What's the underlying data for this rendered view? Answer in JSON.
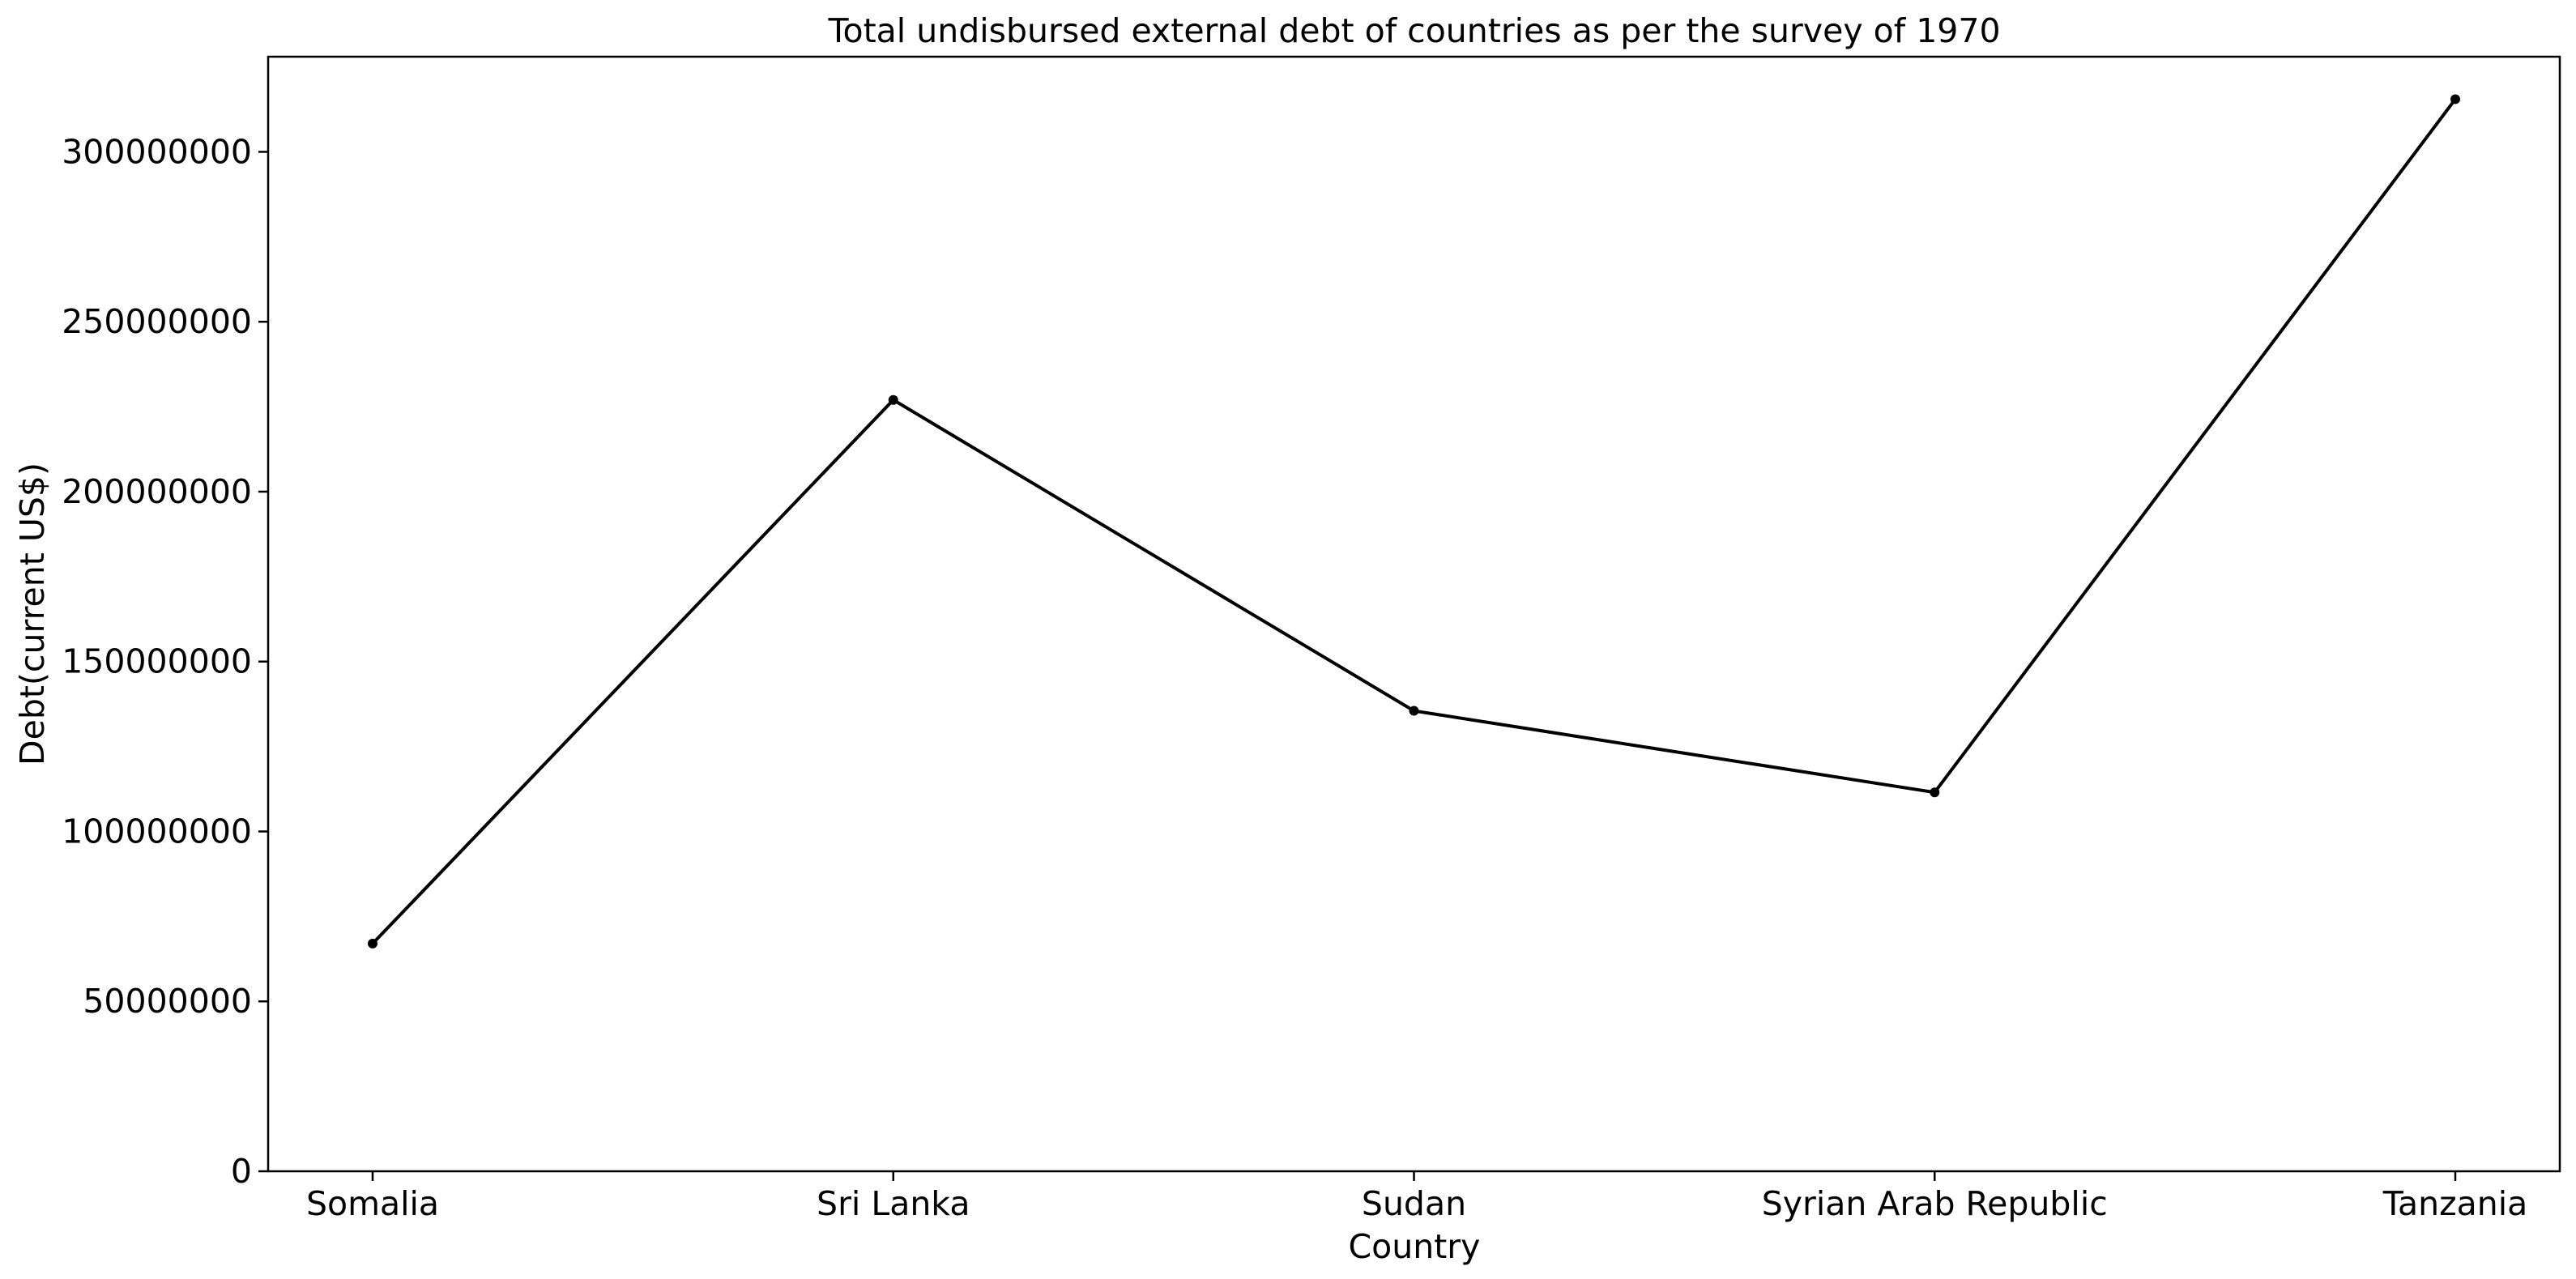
{
  "chart_data": {
    "type": "line",
    "title": "Total undisbursed external debt of countries as per the survey of 1970",
    "xlabel": "Country",
    "ylabel": "Debt(current US$)",
    "categories": [
      "Somalia",
      "Sri Lanka",
      "Sudan",
      "Syrian Arab Republic",
      "Tanzania"
    ],
    "series": [
      {
        "values": [
          67000000,
          227000000,
          135500000,
          111500000,
          315500000
        ],
        "color": "#000000",
        "marker": "circle"
      }
    ],
    "ylim": [
      0,
      328000000
    ],
    "yticks": [
      0,
      50000000,
      100000000,
      150000000,
      200000000,
      250000000,
      300000000
    ],
    "ytick_labels": [
      "0",
      "50000000",
      "100000000",
      "150000000",
      "200000000",
      "250000000",
      "300000000"
    ],
    "grid": false,
    "legend": "none"
  }
}
